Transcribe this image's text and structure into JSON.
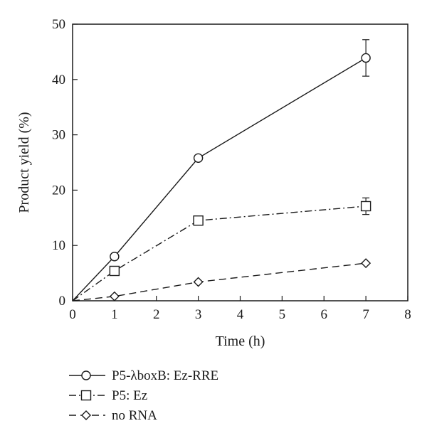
{
  "chart_data": {
    "type": "line",
    "title": "",
    "xlabel": "Time (h)",
    "ylabel": "Product yield (%)",
    "xlim": [
      0,
      8
    ],
    "ylim": [
      0,
      50
    ],
    "xticks": [
      0,
      1,
      2,
      3,
      4,
      5,
      6,
      7,
      8
    ],
    "yticks": [
      0,
      10,
      20,
      30,
      40,
      50
    ],
    "grid": false,
    "legend_position": "bottom-left",
    "series": [
      {
        "name": "P5-λboxB: Ez-RRE",
        "marker": "circle",
        "line_style": "solid",
        "x": [
          0,
          1,
          3,
          7
        ],
        "y": [
          0,
          8.0,
          25.8,
          43.9
        ],
        "error": [
          0,
          0,
          0,
          3.3
        ]
      },
      {
        "name": "P5: Ez",
        "marker": "square",
        "line_style": "dashdot",
        "x": [
          0,
          1,
          3,
          7
        ],
        "y": [
          0,
          5.4,
          14.5,
          17.1
        ],
        "error": [
          0,
          0,
          0,
          1.5
        ]
      },
      {
        "name": "no RNA",
        "marker": "diamond",
        "line_style": "dashed",
        "x": [
          0,
          1,
          3,
          7
        ],
        "y": [
          0,
          0.8,
          3.4,
          6.8
        ],
        "error": [
          0,
          0,
          0,
          0
        ]
      }
    ],
    "colors": {
      "line": "#1a1a1a",
      "background": "#ffffff"
    }
  }
}
